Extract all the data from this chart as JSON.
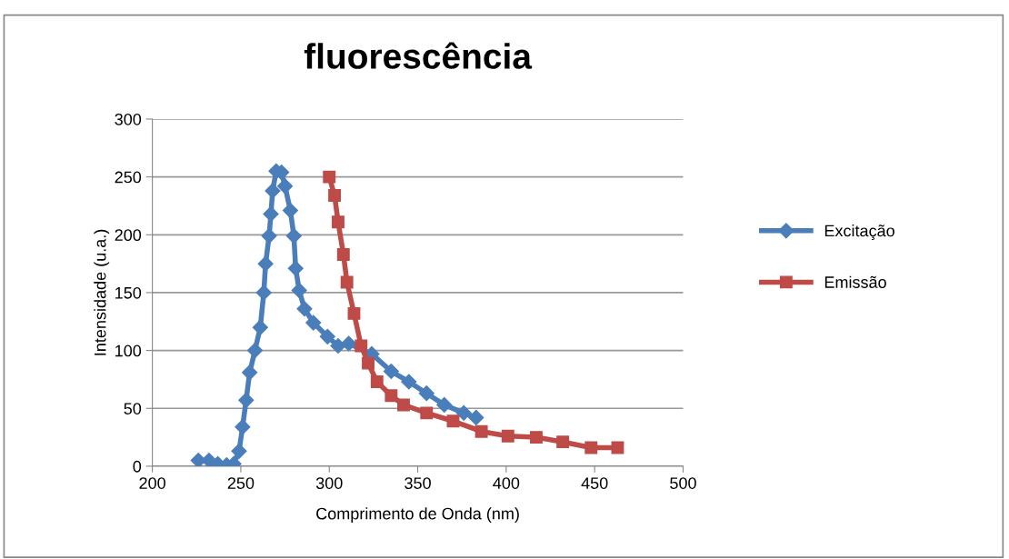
{
  "chart_data": {
    "type": "line",
    "title": "fluorescência",
    "xlabel": "Comprimento de Onda (nm)",
    "ylabel": "Intensidade (u.a.)",
    "xlim": [
      200,
      500
    ],
    "xticks": [
      200,
      250,
      300,
      350,
      400,
      450,
      500
    ],
    "ylim": [
      0,
      300
    ],
    "yticks": [
      0,
      50,
      100,
      150,
      200,
      250,
      300
    ],
    "grid": "y",
    "legend": "right",
    "series": [
      {
        "name": "Excitação",
        "color": "#4a7ebb",
        "marker": "diamond",
        "x": [
          226,
          232,
          237,
          242,
          246,
          249,
          251,
          253,
          255,
          258,
          261,
          263,
          264,
          266,
          267,
          268,
          270,
          273,
          275,
          278,
          280,
          281,
          283,
          286,
          291,
          299,
          305,
          311,
          324,
          335,
          345,
          355,
          365,
          376,
          383
        ],
        "values": [
          5,
          5,
          2,
          1,
          2,
          13,
          34,
          57,
          81,
          100,
          120,
          150,
          175,
          199,
          218,
          238,
          255,
          254,
          242,
          221,
          199,
          171,
          152,
          136,
          124,
          112,
          104,
          106,
          97,
          82,
          73,
          63,
          53,
          46,
          42
        ]
      },
      {
        "name": "Emissão",
        "color": "#be4b48",
        "marker": "square",
        "x": [
          300,
          303,
          305,
          308,
          310,
          314,
          318,
          322,
          327,
          335,
          342,
          355,
          370,
          386,
          401,
          417,
          432,
          448,
          463
        ],
        "values": [
          250,
          234,
          211,
          183,
          159,
          132,
          104,
          89,
          73,
          61,
          53,
          46,
          39,
          30,
          26,
          25,
          21,
          16,
          16
        ]
      }
    ]
  }
}
